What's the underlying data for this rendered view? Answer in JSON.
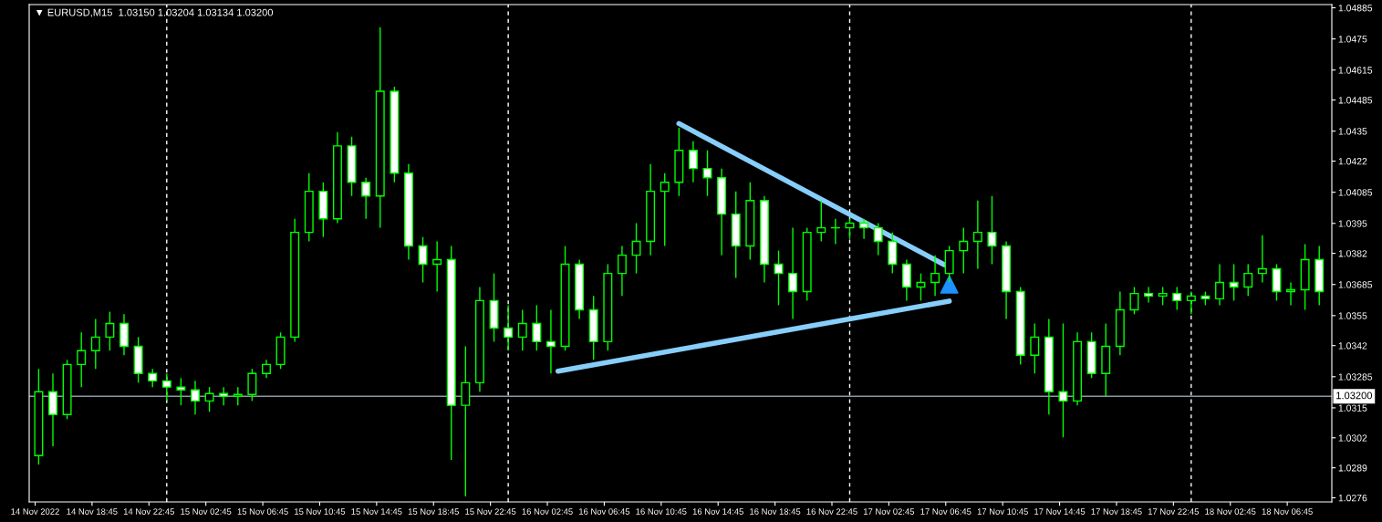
{
  "chart_data": {
    "type": "candlestick",
    "title": "▼ EURUSD,M15  1.03150 1.03204 1.03134 1.03200",
    "xlim": [
      "2022-11-14T14:20",
      "2022-11-18T09:53"
    ],
    "ylim": [
      1.02742,
      1.04899
    ],
    "yticks": [
      1.04885,
      1.0475,
      1.04615,
      1.04485,
      1.0435,
      1.0422,
      1.04085,
      1.0395,
      1.0382,
      1.03685,
      1.0355,
      1.0342,
      1.03285,
      1.0315,
      1.0302,
      1.0289,
      1.0276
    ],
    "xticks": [
      {
        "value": "2022-11-14T14:45",
        "label": "14 Nov 2022"
      },
      {
        "value": "2022-11-14T18:45",
        "label": "14 Nov 18:45"
      },
      {
        "value": "2022-11-14T22:45",
        "label": "14 Nov 22:45"
      },
      {
        "value": "2022-11-15T02:45",
        "label": "15 Nov 02:45"
      },
      {
        "value": "2022-11-15T06:45",
        "label": "15 Nov 06:45"
      },
      {
        "value": "2022-11-15T10:45",
        "label": "15 Nov 10:45"
      },
      {
        "value": "2022-11-15T14:45",
        "label": "15 Nov 14:45"
      },
      {
        "value": "2022-11-15T18:45",
        "label": "15 Nov 18:45"
      },
      {
        "value": "2022-11-15T22:45",
        "label": "15 Nov 22:45"
      },
      {
        "value": "2022-11-16T02:45",
        "label": "16 Nov 02:45"
      },
      {
        "value": "2022-11-16T06:45",
        "label": "16 Nov 06:45"
      },
      {
        "value": "2022-11-16T10:45",
        "label": "16 Nov 10:45"
      },
      {
        "value": "2022-11-16T14:45",
        "label": "16 Nov 14:45"
      },
      {
        "value": "2022-11-16T18:45",
        "label": "16 Nov 18:45"
      },
      {
        "value": "2022-11-16T22:45",
        "label": "16 Nov 22:45"
      },
      {
        "value": "2022-11-17T02:45",
        "label": "17 Nov 02:45"
      },
      {
        "value": "2022-11-17T06:45",
        "label": "17 Nov 06:45"
      },
      {
        "value": "2022-11-17T10:45",
        "label": "17 Nov 10:45"
      },
      {
        "value": "2022-11-17T14:45",
        "label": "17 Nov 14:45"
      },
      {
        "value": "2022-11-17T18:45",
        "label": "17 Nov 18:45"
      },
      {
        "value": "2022-11-17T22:45",
        "label": "17 Nov 22:45"
      },
      {
        "value": "2022-11-18T02:45",
        "label": "18 Nov 02:45"
      },
      {
        "value": "2022-11-18T06:45",
        "label": "18 Nov 06:45"
      }
    ],
    "grid": false,
    "ref_lines": [
      {
        "axis": "y",
        "value": 1.032,
        "label": "1.03200",
        "color": "#8c96a0",
        "line_style": "solid"
      },
      {
        "axis": "x",
        "value": "2022-11-15T00:00",
        "color": "#ffffff",
        "line_style": "dashed"
      },
      {
        "axis": "x",
        "value": "2022-11-16T00:00",
        "color": "#ffffff",
        "line_style": "dashed"
      },
      {
        "axis": "x",
        "value": "2022-11-17T00:00",
        "color": "#ffffff",
        "line_style": "dashed"
      },
      {
        "axis": "x",
        "value": "2022-11-18T00:00",
        "color": "#ffffff",
        "line_style": "dashed"
      }
    ],
    "series": [
      {
        "type": "candlestick",
        "color": "#00ff00",
        "x": [
          "2022-11-14T15:00",
          "2022-11-14T16:00",
          "2022-11-14T17:00",
          "2022-11-14T18:00",
          "2022-11-14T19:00",
          "2022-11-14T20:00",
          "2022-11-14T21:00",
          "2022-11-14T22:00",
          "2022-11-14T23:00",
          "2022-11-15T00:00",
          "2022-11-15T01:00",
          "2022-11-15T02:00",
          "2022-11-15T03:00",
          "2022-11-15T04:00",
          "2022-11-15T05:00",
          "2022-11-15T06:00",
          "2022-11-15T07:00",
          "2022-11-15T08:00",
          "2022-11-15T09:00",
          "2022-11-15T10:00",
          "2022-11-15T11:00",
          "2022-11-15T12:00",
          "2022-11-15T13:00",
          "2022-11-15T14:00",
          "2022-11-15T15:00",
          "2022-11-15T16:00",
          "2022-11-15T17:00",
          "2022-11-15T18:00",
          "2022-11-15T19:00",
          "2022-11-15T20:00",
          "2022-11-15T21:00",
          "2022-11-15T22:00",
          "2022-11-15T23:00",
          "2022-11-16T00:00",
          "2022-11-16T01:00",
          "2022-11-16T02:00",
          "2022-11-16T03:00",
          "2022-11-16T04:00",
          "2022-11-16T05:00",
          "2022-11-16T06:00",
          "2022-11-16T07:00",
          "2022-11-16T08:00",
          "2022-11-16T09:00",
          "2022-11-16T10:00",
          "2022-11-16T11:00",
          "2022-11-16T12:00",
          "2022-11-16T13:00",
          "2022-11-16T14:00",
          "2022-11-16T15:00",
          "2022-11-16T16:00",
          "2022-11-16T17:00",
          "2022-11-16T18:00",
          "2022-11-16T19:00",
          "2022-11-16T20:00",
          "2022-11-16T21:00",
          "2022-11-16T22:00",
          "2022-11-16T23:00",
          "2022-11-17T00:00",
          "2022-11-17T01:00",
          "2022-11-17T02:00",
          "2022-11-17T03:00",
          "2022-11-17T04:00",
          "2022-11-17T05:00",
          "2022-11-17T06:00",
          "2022-11-17T07:00",
          "2022-11-17T08:00",
          "2022-11-17T09:00",
          "2022-11-17T10:00",
          "2022-11-17T11:00",
          "2022-11-17T12:00",
          "2022-11-17T13:00",
          "2022-11-17T14:00",
          "2022-11-17T15:00",
          "2022-11-17T16:00",
          "2022-11-17T17:00",
          "2022-11-17T18:00",
          "2022-11-17T19:00",
          "2022-11-17T20:00",
          "2022-11-17T21:00",
          "2022-11-17T22:00",
          "2022-11-17T23:00",
          "2022-11-18T00:00",
          "2022-11-18T01:00",
          "2022-11-18T02:00",
          "2022-11-18T03:00",
          "2022-11-18T04:00",
          "2022-11-18T05:00",
          "2022-11-18T06:00",
          "2022-11-18T07:00",
          "2022-11-18T08:00",
          "2022-11-18T09:00"
        ],
        "ohlc": [
          [
            1.02943,
            1.03319,
            1.02904,
            1.0322
          ],
          [
            1.0322,
            1.03299,
            1.02983,
            1.03121
          ],
          [
            1.03121,
            1.03358,
            1.03101,
            1.03338
          ],
          [
            1.03338,
            1.03477,
            1.0324,
            1.03398
          ],
          [
            1.03398,
            1.03536,
            1.03319,
            1.03457
          ],
          [
            1.03457,
            1.03567,
            1.03398,
            1.03516
          ],
          [
            1.03516,
            1.03556,
            1.03378,
            1.03417
          ],
          [
            1.03417,
            1.03457,
            1.03259,
            1.03299
          ],
          [
            1.03299,
            1.03319,
            1.0324,
            1.03267
          ],
          [
            1.03267,
            1.03299,
            1.0318,
            1.0324
          ],
          [
            1.0324,
            1.03279,
            1.03161,
            1.03228
          ],
          [
            1.03228,
            1.03267,
            1.03121,
            1.0318
          ],
          [
            1.0318,
            1.0324,
            1.03133,
            1.03212
          ],
          [
            1.03212,
            1.0324,
            1.03161,
            1.032
          ],
          [
            1.032,
            1.0324,
            1.03161,
            1.03208
          ],
          [
            1.03208,
            1.03319,
            1.0318,
            1.03299
          ],
          [
            1.03299,
            1.03358,
            1.03279,
            1.03338
          ],
          [
            1.03338,
            1.03477,
            1.03319,
            1.03457
          ],
          [
            1.03457,
            1.0397,
            1.03437,
            1.03911
          ],
          [
            1.03911,
            1.04168,
            1.03872,
            1.04089
          ],
          [
            1.04089,
            1.04128,
            1.03891,
            1.0397
          ],
          [
            1.0397,
            1.04346,
            1.03951,
            1.04286
          ],
          [
            1.04286,
            1.04326,
            1.04069,
            1.04128
          ],
          [
            1.04128,
            1.04148,
            1.0397,
            1.04069
          ],
          [
            1.04069,
            1.048,
            1.03931,
            1.04523
          ],
          [
            1.04523,
            1.04543,
            1.04128,
            1.04168
          ],
          [
            1.04168,
            1.04207,
            1.03793,
            1.03852
          ],
          [
            1.03852,
            1.03891,
            1.03694,
            1.03773
          ],
          [
            1.03773,
            1.03872,
            1.03654,
            1.03793
          ],
          [
            1.03793,
            1.03852,
            1.02924,
            1.03161
          ],
          [
            1.03161,
            1.03417,
            1.02766,
            1.03259
          ],
          [
            1.03259,
            1.03674,
            1.0322,
            1.03615
          ],
          [
            1.03615,
            1.03733,
            1.03437,
            1.03496
          ],
          [
            1.03496,
            1.03595,
            1.03398,
            1.03457
          ],
          [
            1.03457,
            1.03575,
            1.03398,
            1.03516
          ],
          [
            1.03516,
            1.03595,
            1.03398,
            1.03437
          ],
          [
            1.03437,
            1.03575,
            1.03299,
            1.03417
          ],
          [
            1.03417,
            1.03852,
            1.03398,
            1.03773
          ],
          [
            1.03773,
            1.03793,
            1.03536,
            1.03575
          ],
          [
            1.03575,
            1.03635,
            1.03358,
            1.03437
          ],
          [
            1.03437,
            1.03773,
            1.03398,
            1.03733
          ],
          [
            1.03733,
            1.03852,
            1.03635,
            1.03812
          ],
          [
            1.03812,
            1.03951,
            1.03733,
            1.03872
          ],
          [
            1.03872,
            1.04207,
            1.03812,
            1.04089
          ],
          [
            1.04089,
            1.04168,
            1.03852,
            1.04128
          ],
          [
            1.04128,
            1.04365,
            1.04069,
            1.04267
          ],
          [
            1.04267,
            1.04306,
            1.04128,
            1.04188
          ],
          [
            1.04188,
            1.04267,
            1.04069,
            1.04148
          ],
          [
            1.04148,
            1.04188,
            1.03812,
            1.0399
          ],
          [
            1.0399,
            1.04089,
            1.03714,
            1.03852
          ],
          [
            1.03852,
            1.04128,
            1.03793,
            1.04049
          ],
          [
            1.04049,
            1.04069,
            1.03694,
            1.03773
          ],
          [
            1.03773,
            1.03832,
            1.03595,
            1.03733
          ],
          [
            1.03733,
            1.03931,
            1.03536,
            1.03654
          ],
          [
            1.03654,
            1.03931,
            1.03615,
            1.03911
          ],
          [
            1.03911,
            1.04049,
            1.03872,
            1.03931
          ],
          [
            1.03931,
            1.0397,
            1.0386,
            1.03931
          ],
          [
            1.03931,
            1.0397,
            1.03883,
            1.03951
          ],
          [
            1.03951,
            1.0397,
            1.03883,
            1.03931
          ],
          [
            1.03931,
            1.03951,
            1.03812,
            1.03872
          ],
          [
            1.03872,
            1.03911,
            1.03733,
            1.03773
          ],
          [
            1.03773,
            1.03793,
            1.03615,
            1.03674
          ],
          [
            1.03674,
            1.03733,
            1.03615,
            1.03694
          ],
          [
            1.03694,
            1.03812,
            1.03635,
            1.03733
          ],
          [
            1.03733,
            1.03852,
            1.03694,
            1.03832
          ],
          [
            1.03832,
            1.03931,
            1.03733,
            1.03872
          ],
          [
            1.03872,
            1.04049,
            1.03753,
            1.03911
          ],
          [
            1.03911,
            1.04069,
            1.03773,
            1.03852
          ],
          [
            1.03852,
            1.03872,
            1.03536,
            1.03654
          ],
          [
            1.03654,
            1.03674,
            1.03338,
            1.03378
          ],
          [
            1.03378,
            1.03516,
            1.03299,
            1.03457
          ],
          [
            1.03457,
            1.03536,
            1.03121,
            1.0322
          ],
          [
            1.0322,
            1.03516,
            1.03022,
            1.0318
          ],
          [
            1.0318,
            1.03477,
            1.03161,
            1.03437
          ],
          [
            1.03437,
            1.03477,
            1.03279,
            1.03299
          ],
          [
            1.03299,
            1.03516,
            1.032,
            1.03417
          ],
          [
            1.03417,
            1.03654,
            1.03378,
            1.03575
          ],
          [
            1.03575,
            1.03674,
            1.03556,
            1.03646
          ],
          [
            1.03646,
            1.03674,
            1.03607,
            1.03635
          ],
          [
            1.03635,
            1.03674,
            1.03595,
            1.03646
          ],
          [
            1.03646,
            1.03674,
            1.03575,
            1.03615
          ],
          [
            1.03615,
            1.03654,
            1.03556,
            1.03635
          ],
          [
            1.03635,
            1.03654,
            1.03595,
            1.03623
          ],
          [
            1.03623,
            1.03773,
            1.03595,
            1.03694
          ],
          [
            1.03694,
            1.03773,
            1.03615,
            1.03674
          ],
          [
            1.03674,
            1.03773,
            1.03635,
            1.03733
          ],
          [
            1.03733,
            1.03899,
            1.03694,
            1.03753
          ],
          [
            1.03753,
            1.03773,
            1.03615,
            1.03654
          ],
          [
            1.03654,
            1.03694,
            1.03595,
            1.03662
          ],
          [
            1.03662,
            1.0386,
            1.03575,
            1.03793
          ],
          [
            1.03793,
            1.03852,
            1.03595,
            1.03654
          ]
        ]
      },
      {
        "type": "line",
        "color": "#87cefa",
        "line_style": "solid",
        "x": [
          "2022-11-16T12:00",
          "2022-11-17T06:40"
        ],
        "values": [
          1.04383,
          1.0377
        ]
      },
      {
        "type": "line",
        "color": "#87cefa",
        "line_style": "solid",
        "x": [
          "2022-11-16T03:30",
          "2022-11-17T07:00"
        ],
        "values": [
          1.03309,
          1.03613
        ]
      },
      {
        "type": "scatter",
        "color": "#1e90ff",
        "marker": "triangle",
        "x": [
          "2022-11-17T07:00"
        ],
        "values": [
          1.03685
        ]
      }
    ]
  }
}
